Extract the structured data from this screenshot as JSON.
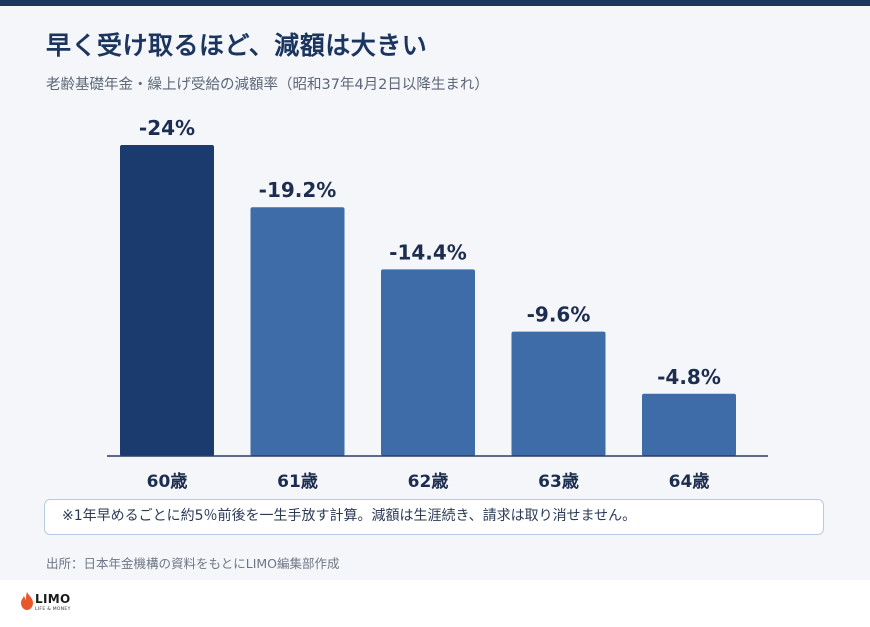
{
  "header": {
    "title": "早く受け取るほど、減額は大きい",
    "subtitle": "老齢基礎年金・繰上げ受給の減額率（昭和37年4月2日以降生まれ）"
  },
  "chart_data": {
    "type": "bar",
    "categories": [
      "60歳",
      "61歳",
      "62歳",
      "63歳",
      "64歳"
    ],
    "values": [
      -24,
      -19.2,
      -14.4,
      -9.6,
      -4.8
    ],
    "data_labels": [
      "-24%",
      "-19.2%",
      "-14.4%",
      "-9.6%",
      "-4.8%"
    ],
    "title": "早く受け取るほど、減額は大きい",
    "subtitle": "老齢基礎年金・繰上げ受給の減額率（昭和37年4月2日以降生まれ）",
    "xlabel": "",
    "ylabel": "",
    "ylim": [
      0,
      24
    ],
    "grid": false,
    "legend": "none",
    "colors": {
      "highlight": "#1b3a6e",
      "bar": "#3d6ca8",
      "axis": "#2b3f5f",
      "label": "#1c2d4f"
    },
    "highlight_index": 0
  },
  "note": {
    "text": "※1年早めるごとに約5％前後を一生手放す計算。減額は生涯続き、請求は取り消せません。"
  },
  "source": {
    "text": "出所：日本年金機構の資料をもとにLIMO編集部作成"
  },
  "branding": {
    "logo_text": "LIMO",
    "tagline": "LIFE & MONEY",
    "logo_color": "#e8582a"
  }
}
